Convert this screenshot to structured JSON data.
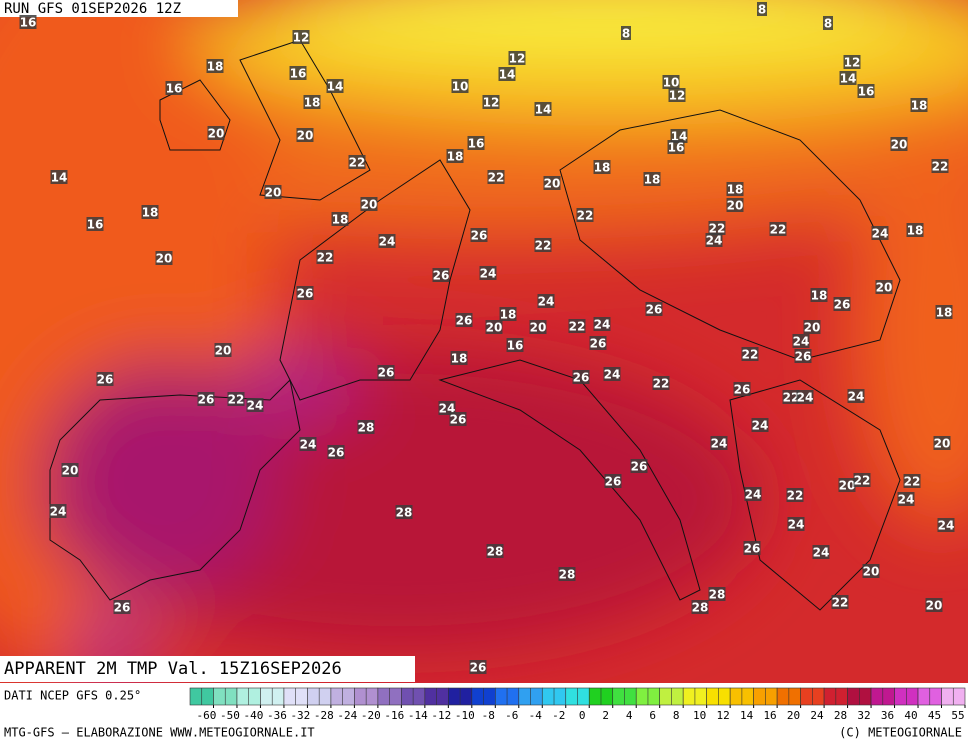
{
  "header": {
    "run": "RUN GFS 01SEP2026 12Z",
    "field": "APPARENT 2M TMP Val. 15Z16SEP2026"
  },
  "map": {
    "labels": [
      16,
      12,
      8,
      8,
      8,
      18,
      16,
      12,
      14,
      12,
      16,
      14,
      10,
      10,
      12,
      14,
      16,
      18,
      12,
      14,
      18,
      20,
      20,
      16,
      14,
      16,
      20,
      18,
      22,
      18,
      22,
      14,
      22,
      20,
      18,
      20,
      18,
      18,
      20,
      20,
      16,
      18,
      22,
      22,
      22,
      24,
      24,
      18,
      26,
      24,
      22,
      20,
      22,
      26,
      24,
      20,
      26,
      18,
      26,
      24,
      26,
      18,
      18,
      26,
      20,
      20,
      22,
      24,
      20,
      24,
      26,
      16,
      20,
      22,
      26,
      18,
      26,
      26,
      26,
      24,
      22,
      26,
      24,
      26,
      22,
      24,
      22,
      24,
      24,
      26,
      28,
      24,
      24,
      26,
      24,
      20,
      26,
      20,
      26,
      20,
      22,
      22,
      24,
      22,
      24,
      28,
      24,
      24,
      24,
      26,
      28,
      24,
      28,
      20,
      28,
      28,
      22,
      20,
      26,
      26
    ]
  },
  "legend": {
    "source": "DATI NCEP GFS 0.25°",
    "ticks": [
      -60,
      -50,
      -40,
      -36,
      -32,
      -28,
      -24,
      -20,
      -16,
      -14,
      -12,
      -10,
      -8,
      -6,
      -4,
      -2,
      0,
      2,
      4,
      6,
      8,
      10,
      12,
      14,
      16,
      20,
      24,
      28,
      32,
      36,
      40,
      45,
      55
    ],
    "colors": [
      "#40c8a0",
      "#80e0c0",
      "#b0f0e0",
      "#d0f0f0",
      "#e0e0f8",
      "#d0d0f0",
      "#c0b0e0",
      "#b090d0",
      "#9070c0",
      "#7050b0",
      "#5030a0",
      "#2020a0",
      "#1040d0",
      "#2070f0",
      "#30a0f0",
      "#30c8f0",
      "#30e0e0",
      "#20d020",
      "#40e040",
      "#80f040",
      "#c0f040",
      "#f0f020",
      "#f8e000",
      "#f8c000",
      "#f8a000",
      "#f07000",
      "#e84020",
      "#d02030",
      "#b01040",
      "#c01890",
      "#d030c0",
      "#e060e0",
      "#f0b0f0"
    ]
  },
  "footer": {
    "left": "MTG-GFS — ELABORAZIONE WWW.METEOGIORNALE.IT",
    "right": "(C) METEOGIORNALE"
  }
}
